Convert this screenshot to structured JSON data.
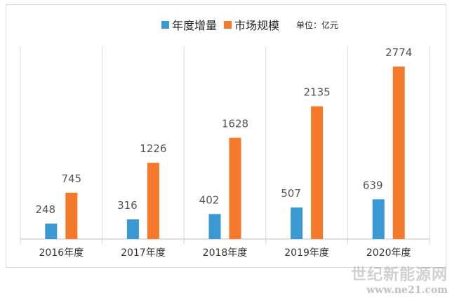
{
  "chart_data": {
    "type": "bar",
    "categories": [
      "2016年度",
      "2017年度",
      "2018年度",
      "2019年度",
      "2020年度"
    ],
    "series": [
      {
        "name": "年度增量",
        "color": "#3a98d3",
        "values": [
          248,
          316,
          402,
          507,
          639
        ]
      },
      {
        "name": "市场规模",
        "color": "#f4792a",
        "values": [
          745,
          1226,
          1628,
          2135,
          2774
        ]
      }
    ],
    "unit_label": "单位：亿元",
    "ylim": [
      0,
      3100
    ],
    "grid": "vertical category separators",
    "legend_position": "top"
  },
  "watermark": {
    "main": "世纪新能源网",
    "sub": "www.ne21.com"
  }
}
